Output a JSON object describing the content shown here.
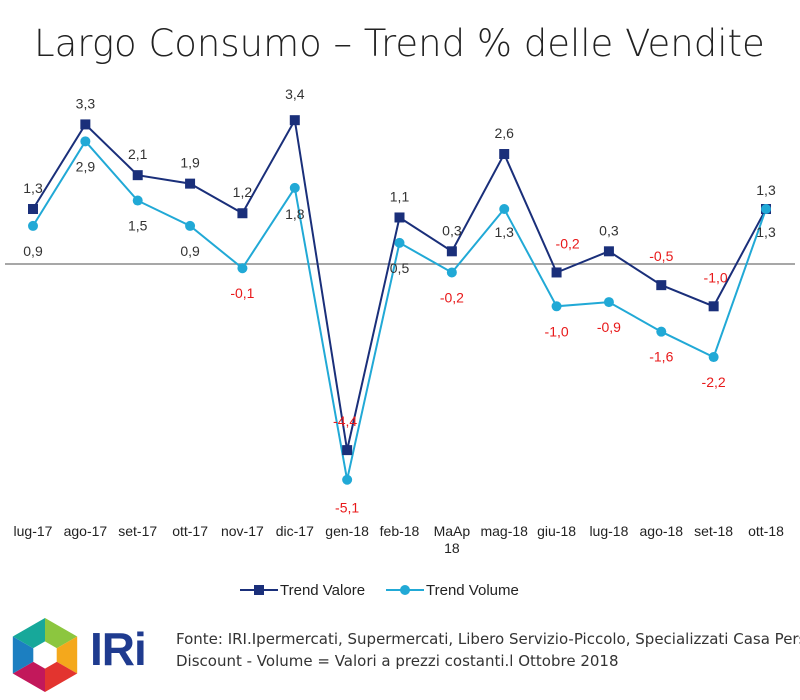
{
  "chart_data": {
    "type": "line",
    "title": "Largo Consumo – Trend % delle Vendite",
    "categories": [
      "lug-17",
      "ago-17",
      "set-17",
      "ott-17",
      "nov-17",
      "dic-17",
      "gen-18",
      "feb-18",
      "MaAp 18",
      "mag-18",
      "giu-18",
      "lug-18",
      "ago-18",
      "set-18",
      "ott-18"
    ],
    "series": [
      {
        "name": "Trend Valore",
        "color": "#1a2f7a",
        "marker": "square",
        "values": [
          1.3,
          3.3,
          2.1,
          1.9,
          1.2,
          3.4,
          -4.4,
          1.1,
          0.3,
          2.6,
          -0.2,
          0.3,
          -0.5,
          -1.0,
          1.3
        ],
        "labels": [
          "1,3",
          "3,3",
          "2,1",
          "1,9",
          "1,2",
          "3,4",
          "-4,4",
          "1,1",
          "0,3",
          "2,6",
          "-0,2",
          "0,3",
          "-0,5",
          "-1,0",
          "1,3"
        ]
      },
      {
        "name": "Trend Volume",
        "color": "#21a9d6",
        "marker": "circle",
        "values": [
          0.9,
          2.9,
          1.5,
          0.9,
          -0.1,
          1.8,
          -5.1,
          0.5,
          -0.2,
          1.3,
          -1.0,
          -0.9,
          -1.6,
          -2.2,
          1.3
        ],
        "labels": [
          "0,9",
          "2,9",
          "1,5",
          "0,9",
          "-0,1",
          "1,8",
          "-5,1",
          "0,5",
          "-0,2",
          "1,3",
          "-1,0",
          "-0,9",
          "-1,6",
          "-2,2",
          "1,3"
        ]
      }
    ],
    "ylim": [
      -6,
      4
    ],
    "grid": false,
    "legend_position": "bottom",
    "negative_label_color": "#e8191a",
    "positive_label_color": "#333333"
  },
  "source_lines": [
    "Fonte: IRI.Ipermercati, Supermercati, Libero Servizio-Piccolo, Specializzati Casa Persona,",
    "Discount -  Volume = Valori a prezzi costanti.l Ottobre 2018"
  ],
  "logo_text": "IRi"
}
